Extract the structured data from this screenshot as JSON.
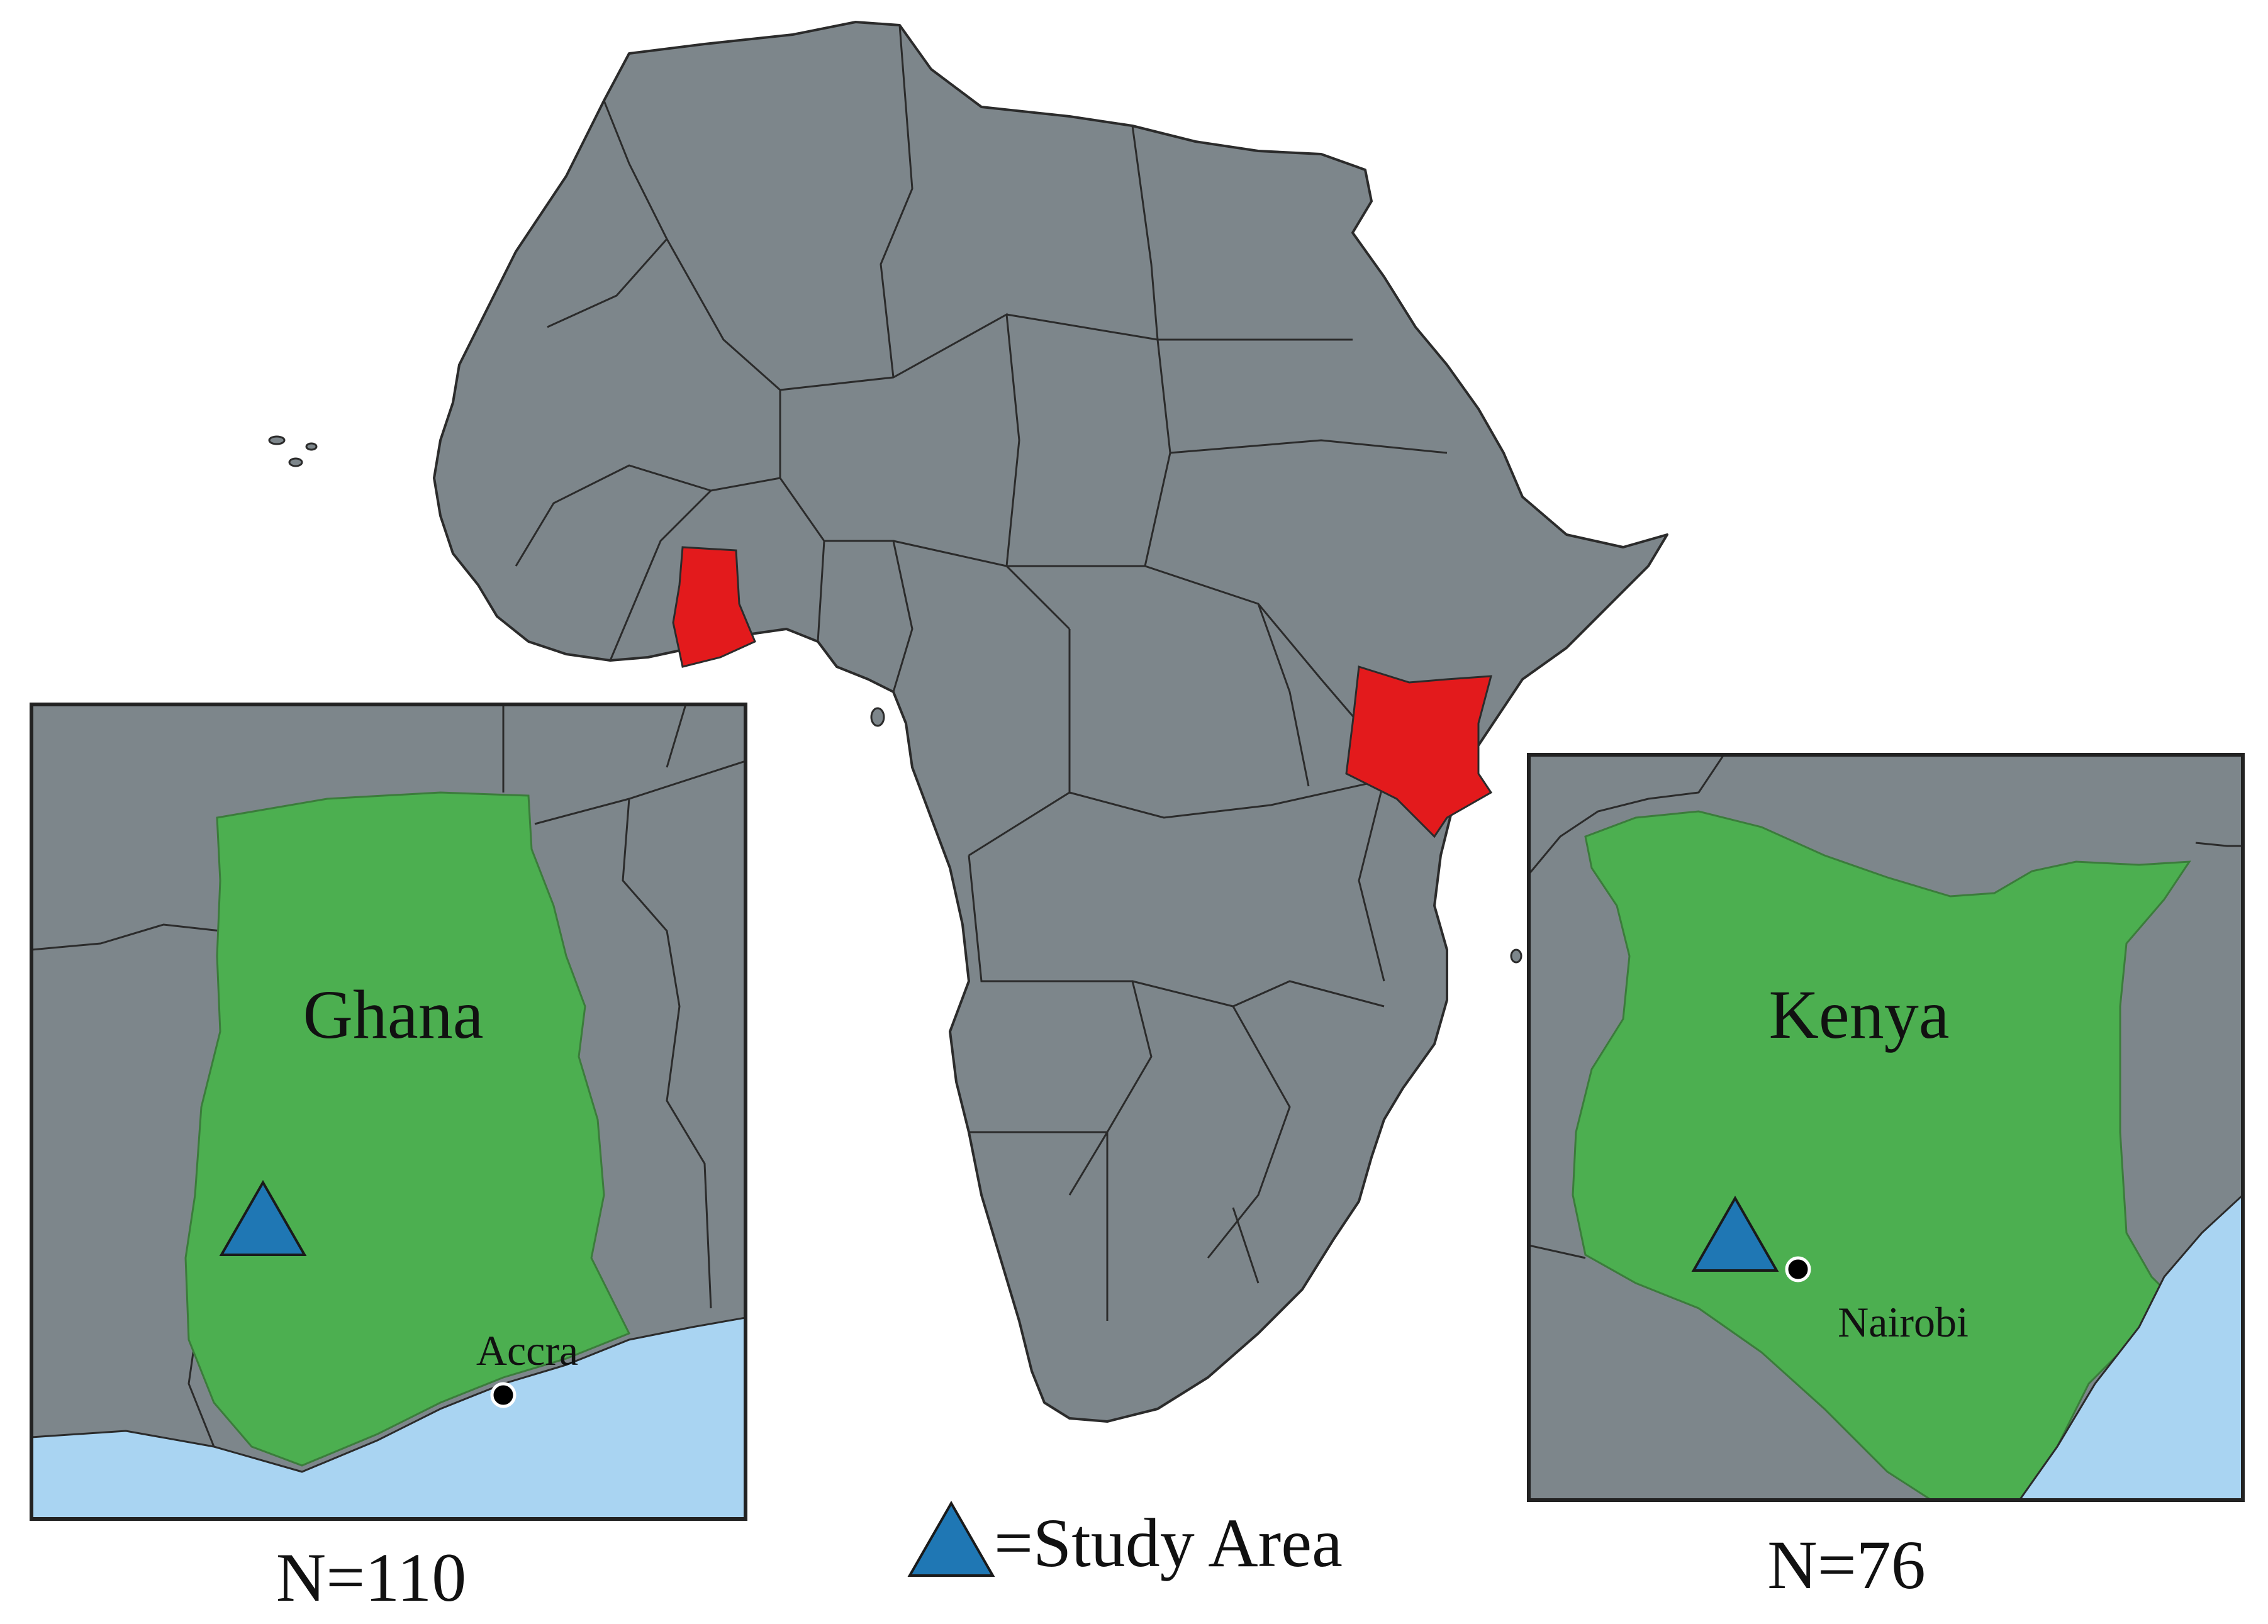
{
  "colors": {
    "land": "#7d868b",
    "border": "#2b2b2b",
    "highlight": "#e31a1c",
    "focus_country": "#4caf50",
    "water": "#a9d4f2",
    "study_marker": "#1f77b4",
    "city_marker": "#000000"
  },
  "highlighted_countries": [
    "Ghana",
    "Kenya"
  ],
  "insets": {
    "ghana": {
      "country_label": "Ghana",
      "city_label": "Accra",
      "sample_label": "N=110",
      "study_marker_icon": "triangle-icon",
      "city_marker_icon": "circle-dot-icon"
    },
    "kenya": {
      "country_label": "Kenya",
      "city_label": "Nairobi",
      "sample_label": "N=76",
      "study_marker_icon": "triangle-icon",
      "city_marker_icon": "circle-dot-icon"
    }
  },
  "legend": {
    "text": "=Study Area",
    "icon": "triangle-icon"
  }
}
